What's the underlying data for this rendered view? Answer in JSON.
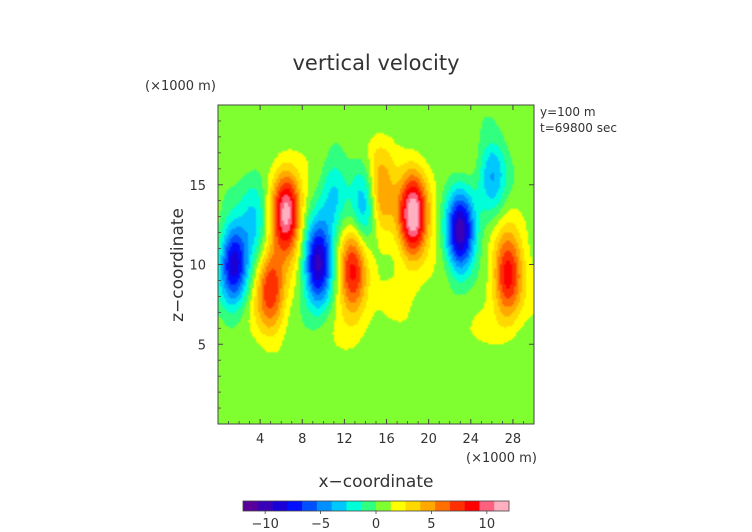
{
  "chart_data": {
    "type": "heatmap",
    "title": "vertical velocity",
    "xlabel": "x−coordinate",
    "ylabel": "z−coordinate",
    "x_unit": "(×1000 m)",
    "y_unit": "(×1000 m)",
    "annotations": [
      "y=100 m",
      "t=69800 sec"
    ],
    "xlim": [
      0,
      30
    ],
    "ylim": [
      0,
      20
    ],
    "x_ticks": [
      4,
      8,
      12,
      16,
      20,
      24,
      28
    ],
    "y_ticks": [
      5,
      10,
      15
    ],
    "x_tick_labels": [
      "4",
      "8",
      "12",
      "16",
      "20",
      "24",
      "28"
    ],
    "y_tick_labels": [
      "5",
      "10",
      "15"
    ],
    "colorbar": {
      "range": [
        -12,
        12
      ],
      "ticks": [
        -10,
        -5,
        0,
        5,
        10
      ],
      "tick_labels": [
        "−10",
        "−5",
        "0",
        "5",
        "10"
      ],
      "colors": [
        "#5a009a",
        "#3a00b8",
        "#1a00d8",
        "#0010ff",
        "#0050ff",
        "#0090ff",
        "#00c8ff",
        "#00ffd8",
        "#30ff80",
        "#80ff30",
        "#ffff00",
        "#ffd800",
        "#ffa800",
        "#ff7000",
        "#ff3000",
        "#ff0000",
        "#ff6080",
        "#ffb0c0"
      ]
    },
    "features": [
      {
        "label": "updraft",
        "x": 6.5,
        "z": 13.2,
        "value": 10
      },
      {
        "label": "updraft",
        "x": 18.5,
        "z": 13.0,
        "value": 11
      },
      {
        "label": "updraft",
        "x": 12.8,
        "z": 9.5,
        "value": 8
      },
      {
        "label": "updraft",
        "x": 27.5,
        "z": 9.3,
        "value": 8
      },
      {
        "label": "updraft",
        "x": 15.3,
        "z": 14.5,
        "value": 6
      },
      {
        "label": "updraft",
        "x": 5.0,
        "z": 8.5,
        "value": 7
      },
      {
        "label": "downdraft",
        "x": 1.5,
        "z": 10.0,
        "value": -10
      },
      {
        "label": "downdraft",
        "x": 9.5,
        "z": 10.0,
        "value": -11
      },
      {
        "label": "downdraft",
        "x": 23.0,
        "z": 12.0,
        "value": -11
      },
      {
        "label": "downdraft",
        "x": 14.0,
        "z": 13.5,
        "value": -6
      },
      {
        "label": "downdraft",
        "x": 3.5,
        "z": 13.0,
        "value": -4
      },
      {
        "label": "downdraft",
        "x": 11.0,
        "z": 14.5,
        "value": -4
      },
      {
        "label": "downdraft",
        "x": 26.0,
        "z": 15.5,
        "value": -5
      }
    ]
  }
}
